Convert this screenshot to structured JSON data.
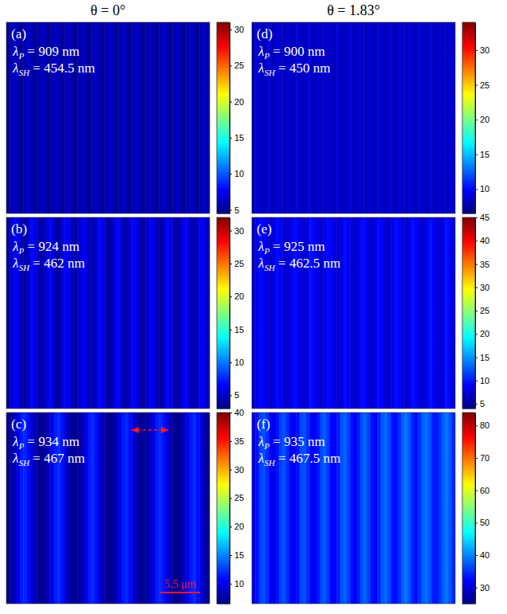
{
  "column_titles": [
    "θ = 0°",
    "θ = 1.83°"
  ],
  "chart_data": [
    {
      "type": "heatmap",
      "color": "jet",
      "tick_labels": false,
      "panel_label": "(a)",
      "annotations": [
        {
          "symbol": "λ",
          "subscript": "P",
          "text": " = 909 nm"
        },
        {
          "symbol": "λ",
          "subscript": "SH",
          "text": " = 454.5 nm"
        }
      ],
      "cells": [
        5,
        5.8,
        6.3,
        5.8,
        5,
        5.8,
        6.5,
        5.8,
        5,
        5.6,
        6.3,
        5.8,
        4.8,
        5.8,
        6.3,
        5.8,
        5,
        5.8,
        6.3,
        5.5,
        5,
        5.6,
        6.3,
        5.8,
        5,
        5.8,
        6.3,
        5.8,
        5,
        5.6,
        6.5,
        5.8,
        4.8,
        5.8,
        6.3,
        5.8,
        5,
        5.8,
        6.3,
        5.8,
        5,
        5.6,
        6.3,
        5.5,
        5,
        5.8,
        6.3,
        5.8,
        5,
        5.6,
        6.3,
        5.8,
        4.8,
        5.8,
        6.3,
        5.8,
        5,
        5.8,
        6.3,
        5.8
      ],
      "colorbar_range": [
        4.5,
        31
      ],
      "colorbar_ticks": [
        5,
        10,
        15,
        20,
        25,
        30
      ]
    },
    {
      "type": "heatmap",
      "color": "jet",
      "tick_labels": false,
      "panel_label": "(b)",
      "annotations": [
        {
          "symbol": "λ",
          "subscript": "P",
          "text": " = 924 nm"
        },
        {
          "symbol": "λ",
          "subscript": "SH",
          "text": " = 462 nm"
        }
      ],
      "cells": [
        4,
        5,
        6.5,
        6,
        4.5,
        4,
        5,
        6.8,
        6,
        4.5,
        4,
        5,
        6.5,
        6,
        4.2,
        4,
        5.3,
        6.5,
        6,
        4.5,
        4,
        5,
        6.5,
        6,
        4.5,
        4.2,
        5,
        6.8,
        6,
        4.5,
        4,
        5,
        6.5,
        6,
        4.5,
        4,
        5.3,
        6.5,
        6,
        4.2,
        4,
        5,
        6.5,
        6,
        4.5,
        4,
        5,
        6.8,
        6,
        4.5,
        4,
        5,
        6.5,
        6,
        4.5,
        4.2,
        5,
        6.5,
        6,
        4.5
      ],
      "colorbar_range": [
        3,
        32
      ],
      "colorbar_ticks": [
        5,
        10,
        15,
        20,
        25,
        30
      ]
    },
    {
      "type": "heatmap",
      "color": "jet",
      "tick_labels": false,
      "panel_label": "(c)",
      "annotations": [
        {
          "symbol": "λ",
          "subscript": "P",
          "text": " = 934 nm"
        },
        {
          "symbol": "λ",
          "subscript": "SH",
          "text": " = 467 nm"
        }
      ],
      "scale_bar": {
        "label": "5.5 μm"
      },
      "cells": [
        7,
        7.5,
        8.5,
        10,
        11.5,
        12,
        11,
        9.5,
        8,
        7.2,
        7,
        7.6,
        8.6,
        10.2,
        11.6,
        12.2,
        11,
        9.4,
        8,
        7.1,
        7,
        7.5,
        8.5,
        10,
        11.4,
        12,
        11.2,
        9.6,
        8.1,
        7.2,
        7,
        7.5,
        8.4,
        9.9,
        11.5,
        12.1,
        11,
        9.5,
        8,
        7.2,
        7.1,
        7.6,
        8.5,
        10,
        11.6,
        12,
        11.1,
        9.5,
        8,
        7.1,
        7,
        7.5,
        8.6,
        10.1,
        11.5,
        12.2,
        11,
        9.4,
        8,
        7.2
      ],
      "colorbar_range": [
        6.5,
        40
      ],
      "colorbar_ticks": [
        10,
        15,
        20,
        25,
        30,
        35,
        40
      ]
    },
    {
      "type": "heatmap",
      "color": "jet",
      "tick_labels": false,
      "panel_label": "(d)",
      "annotations": [
        {
          "symbol": "λ",
          "subscript": "P",
          "text": " = 900 nm"
        },
        {
          "symbol": "λ",
          "subscript": "SH",
          "text": " = 450 nm"
        }
      ],
      "cells": [
        8,
        8.8,
        8.4,
        8.1,
        8.9,
        8.4,
        8,
        8.8,
        8.5,
        8,
        8.7,
        8.4,
        8.1,
        8.8,
        8.4,
        8,
        8.9,
        8.5,
        8,
        8.8,
        8.4,
        8.1,
        8.8,
        8.3,
        8,
        8.9,
        8.4,
        8,
        8.8,
        8.5,
        8.1,
        8.7,
        8.4,
        8,
        8.8,
        8.4,
        8,
        8.9,
        8.5,
        8.1,
        8.8,
        8.4,
        8,
        8.8,
        8.3,
        8,
        8.9,
        8.4,
        8.1,
        8.8,
        8.5,
        8,
        8.7,
        8.4,
        8,
        8.8,
        8.4,
        8.1,
        8.9,
        8.5
      ],
      "colorbar_range": [
        6.5,
        34
      ],
      "colorbar_ticks": [
        10,
        15,
        20,
        25,
        30
      ]
    },
    {
      "type": "heatmap",
      "color": "jet",
      "tick_labels": false,
      "panel_label": "(e)",
      "annotations": [
        {
          "symbol": "λ",
          "subscript": "P",
          "text": " = 925 nm"
        },
        {
          "symbol": "λ",
          "subscript": "SH",
          "text": " = 462.5 nm"
        }
      ],
      "cells": [
        7,
        8,
        9.5,
        9,
        7.5,
        7,
        8.2,
        9.6,
        9,
        7.4,
        7.1,
        8,
        9.5,
        8.9,
        7.5,
        7,
        8,
        9.7,
        9,
        7.5,
        7,
        8.1,
        9.5,
        9,
        7.4,
        7.2,
        8,
        9.6,
        9.1,
        7.5,
        7,
        8,
        9.5,
        9,
        7.5,
        7.1,
        8.2,
        9.5,
        9,
        7.4,
        7,
        8,
        9.6,
        9,
        7.5,
        7.2,
        8.1,
        9.7,
        9.1,
        7.6,
        7.2,
        8.2,
        9.7,
        9.2,
        7.6,
        7.3,
        8.2,
        9.8,
        9.2,
        7.7
      ],
      "colorbar_range": [
        4,
        45
      ],
      "colorbar_ticks": [
        5,
        10,
        15,
        20,
        25,
        30,
        35,
        40,
        45
      ]
    },
    {
      "type": "heatmap",
      "color": "jet",
      "tick_labels": false,
      "panel_label": "(f)",
      "annotations": [
        {
          "symbol": "λ",
          "subscript": "P",
          "text": " = 935 nm"
        },
        {
          "symbol": "λ",
          "subscript": "SH",
          "text": " = 467.5 nm"
        }
      ],
      "cells": [
        31,
        33,
        36,
        37,
        35,
        32,
        31,
        33.5,
        36,
        37,
        35,
        32,
        31.5,
        33,
        36.5,
        37,
        35,
        32,
        31.5,
        33.5,
        36.5,
        37.5,
        35.5,
        32.5,
        32,
        34,
        37,
        38,
        36,
        33,
        32,
        34,
        37,
        38,
        36,
        33,
        32.5,
        34.5,
        37.5,
        38.5,
        36.5,
        33.5,
        33,
        35,
        38,
        39,
        37,
        34,
        33,
        35,
        38,
        39,
        37,
        34,
        33.5,
        35.5,
        38,
        39,
        37,
        34.5
      ],
      "colorbar_range": [
        25,
        84
      ],
      "colorbar_ticks": [
        30,
        40,
        50,
        60,
        70,
        80
      ]
    }
  ]
}
